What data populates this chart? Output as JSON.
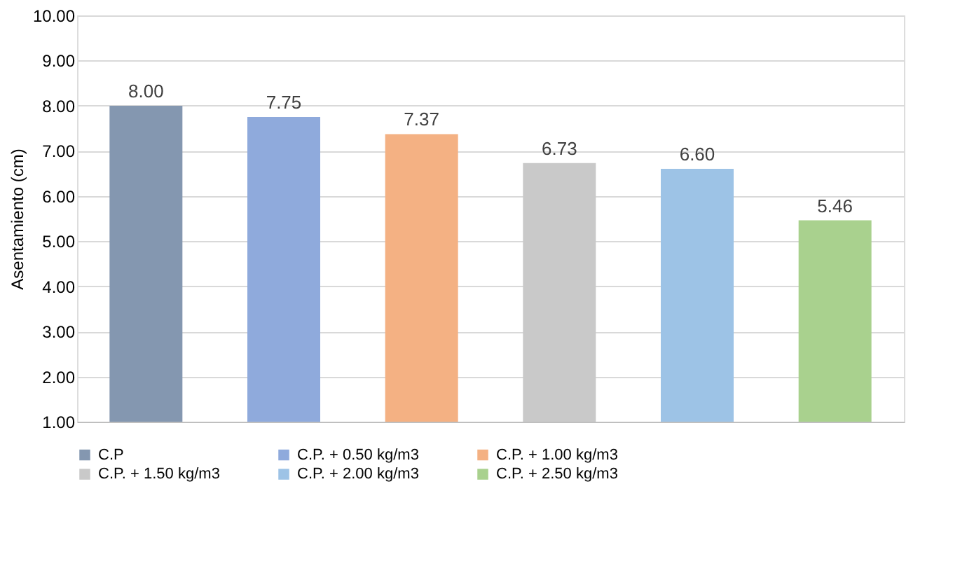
{
  "chart_data": {
    "type": "bar",
    "ylabel": "Asentamiento (cm)",
    "categories": [
      null,
      null,
      null,
      null,
      null,
      null
    ],
    "series": [
      {
        "name": "C.P",
        "color": "#8497b0",
        "values": [
          8.0,
          null,
          null,
          null,
          null,
          null
        ],
        "value_labels": [
          "8.00",
          null,
          null,
          null,
          null,
          null
        ]
      },
      {
        "name": "C.P. + 0.50 kg/m3",
        "color": "#8faadc",
        "values": [
          null,
          7.75,
          null,
          null,
          null,
          null
        ],
        "value_labels": [
          null,
          "7.75",
          null,
          null,
          null,
          null
        ]
      },
      {
        "name": "C.P. + 1.00 kg/m3",
        "color": "#f4b183",
        "values": [
          null,
          null,
          7.37,
          null,
          null,
          null
        ],
        "value_labels": [
          null,
          null,
          "7.37",
          null,
          null,
          null
        ]
      },
      {
        "name": "C.P. + 1.50 kg/m3",
        "color": "#c9c9c9",
        "values": [
          null,
          null,
          null,
          6.73,
          null,
          null
        ],
        "value_labels": [
          null,
          null,
          null,
          "6.73",
          null,
          null
        ]
      },
      {
        "name": "C.P. + 2.00 kg/m3",
        "color": "#9dc3e6",
        "values": [
          null,
          null,
          null,
          null,
          6.6,
          null
        ],
        "value_labels": [
          null,
          null,
          null,
          null,
          "6.60",
          null
        ]
      },
      {
        "name": "C.P. + 2.50 kg/m3",
        "color": "#a9d18e",
        "values": [
          null,
          null,
          null,
          null,
          null,
          5.46
        ],
        "value_labels": [
          null,
          null,
          null,
          null,
          null,
          "5.46"
        ]
      }
    ],
    "ylim": [
      1,
      10
    ],
    "yticks": [
      {
        "value": 1,
        "label": "1.00"
      },
      {
        "value": 2,
        "label": "2.00"
      },
      {
        "value": 3,
        "label": "3.00"
      },
      {
        "value": 4,
        "label": "4.00"
      },
      {
        "value": 5,
        "label": "5.00"
      },
      {
        "value": 6,
        "label": "6.00"
      },
      {
        "value": 7,
        "label": "7.00"
      },
      {
        "value": 8,
        "label": "8.00"
      },
      {
        "value": 9,
        "label": "9.00"
      },
      {
        "value": 10,
        "label": "10.00"
      }
    ],
    "grid": "y",
    "legend": "bottom"
  }
}
